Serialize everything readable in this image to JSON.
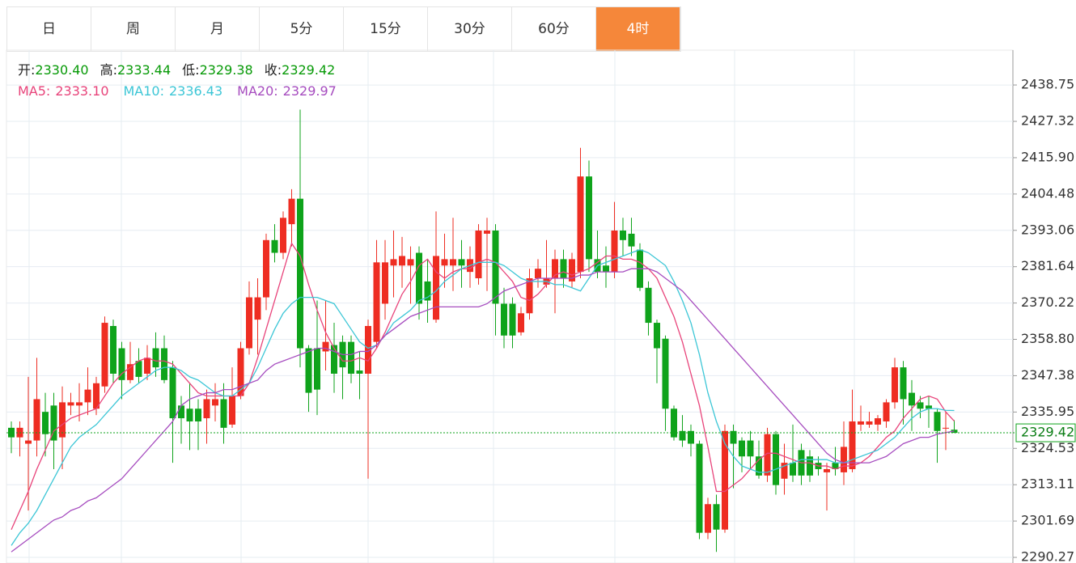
{
  "tabs": {
    "items": [
      "日",
      "周",
      "月",
      "5分",
      "15分",
      "30分",
      "60分",
      "4时"
    ],
    "active": 7
  },
  "info": {
    "items": [
      {
        "label": "开:",
        "value": "2330.40"
      },
      {
        "label": "高:",
        "value": "2333.44"
      },
      {
        "label": "低:",
        "value": "2329.38"
      },
      {
        "label": "收:",
        "value": "2329.42"
      }
    ]
  },
  "chart_data": {
    "type": "candlestick",
    "up_color": "#ee2d22",
    "down_color": "#0fa31b",
    "ylim": [
      2288.5,
      2449.7
    ],
    "yticks": [
      {
        "value": 2438.75,
        "label": "2438.75"
      },
      {
        "value": 2427.32,
        "label": "2427.32"
      },
      {
        "value": 2415.9,
        "label": "2415.90"
      },
      {
        "value": 2404.48,
        "label": "2404.48"
      },
      {
        "value": 2393.06,
        "label": "2393.06"
      },
      {
        "value": 2381.64,
        "label": "2381.64"
      },
      {
        "value": 2370.22,
        "label": "2370.22"
      },
      {
        "value": 2358.8,
        "label": "2358.80"
      },
      {
        "value": 2347.38,
        "label": "2347.38"
      },
      {
        "value": 2335.95,
        "label": "2335.95"
      },
      {
        "value": 2324.53,
        "label": "2324.53"
      },
      {
        "value": 2313.11,
        "label": "2313.11"
      },
      {
        "value": 2301.69,
        "label": "2301.69"
      },
      {
        "value": 2290.27,
        "label": "2290.27"
      }
    ],
    "grid": true,
    "last_price": {
      "value": 2329.42,
      "label": "2329.42"
    },
    "open": [
      2331,
      2328,
      2326,
      2327,
      2336,
      2338,
      2328,
      2338,
      2338,
      2339,
      2337,
      2344,
      2363,
      2356,
      2346,
      2352,
      2348,
      2356,
      2356,
      2350,
      2338,
      2337,
      2337,
      2334,
      2338,
      2340,
      2332,
      2341,
      2356,
      2365,
      2372,
      2390,
      2386,
      2395,
      2403,
      2356,
      2356,
      2355,
      2357,
      2358,
      2358,
      2349,
      2348,
      2358,
      2370,
      2382,
      2382,
      2382,
      2386,
      2377,
      2365,
      2382,
      2382,
      2384,
      2380,
      2378,
      2392,
      2393,
      2370,
      2370,
      2361,
      2367,
      2378,
      2376,
      2378,
      2384,
      2377,
      2380,
      2410,
      2384,
      2382,
      2380,
      2393,
      2392,
      2387,
      2375,
      2364,
      2359,
      2337,
      2330,
      2330,
      2326,
      2298,
      2307,
      2299,
      2330,
      2327,
      2327,
      2322,
      2316,
      2329,
      2315,
      2320,
      2324,
      2322,
      2320,
      2317,
      2320,
      2317,
      2318,
      2332,
      2332,
      2332,
      2333,
      2339,
      2350,
      2342,
      2339,
      2338,
      2336,
      2331,
      2330.4
    ],
    "high": [
      2333,
      2333,
      2347,
      2353,
      2342,
      2342,
      2344,
      2342,
      2345,
      2350,
      2347,
      2366,
      2365,
      2358,
      2358,
      2356,
      2357,
      2361,
      2360,
      2352,
      2341,
      2345,
      2340,
      2343,
      2345,
      2345,
      2350,
      2358,
      2377,
      2378,
      2392,
      2395,
      2399,
      2406,
      2431,
      2357,
      2371,
      2371,
      2364,
      2360,
      2360,
      2355,
      2365,
      2390,
      2390,
      2393,
      2391,
      2388,
      2388,
      2384,
      2399,
      2392,
      2397,
      2390,
      2388,
      2395,
      2397,
      2395,
      2375,
      2372,
      2369,
      2381,
      2384,
      2390,
      2387,
      2387,
      2386,
      2419,
      2415,
      2393,
      2388,
      2402,
      2397,
      2397,
      2389,
      2377,
      2365,
      2360,
      2338,
      2335,
      2332,
      2327,
      2309,
      2310,
      2332,
      2332,
      2328,
      2330,
      2327,
      2331,
      2330,
      2326,
      2332,
      2326,
      2324,
      2322,
      2320,
      2325,
      2333,
      2343,
      2338,
      2336,
      2335,
      2340,
      2353,
      2352,
      2346,
      2341,
      2341,
      2337,
      2336,
      2333.44
    ],
    "low": [
      2323,
      2322,
      2305,
      2322,
      2322,
      2318,
      2318,
      2335,
      2333,
      2335,
      2335,
      2342,
      2345,
      2340,
      2345,
      2345,
      2346,
      2347,
      2345,
      2320,
      2326,
      2324,
      2324,
      2326,
      2333,
      2326,
      2331,
      2340,
      2354,
      2354,
      2368,
      2383,
      2384,
      2388,
      2350,
      2336,
      2335,
      2349,
      2342,
      2340,
      2345,
      2340,
      2315,
      2356,
      2365,
      2372,
      2375,
      2370,
      2365,
      2364,
      2364,
      2375,
      2374,
      2375,
      2375,
      2376,
      2374,
      2360,
      2356,
      2356,
      2360,
      2365,
      2375,
      2375,
      2367,
      2375,
      2375,
      2378,
      2380,
      2378,
      2375,
      2378,
      2385,
      2385,
      2374,
      2360,
      2345,
      2330,
      2327,
      2325,
      2322,
      2296,
      2296,
      2292,
      2298,
      2312,
      2317,
      2318,
      2315,
      2314,
      2310,
      2310,
      2314,
      2313,
      2314,
      2316,
      2305,
      2316,
      2313,
      2317,
      2330,
      2331,
      2330,
      2331,
      2337,
      2332,
      2330,
      2334,
      2331,
      2320,
      2324,
      2329.38
    ],
    "close": [
      2328,
      2331,
      2327,
      2340,
      2329,
      2327,
      2339,
      2339,
      2339,
      2343,
      2345,
      2364,
      2348,
      2346,
      2351,
      2347,
      2353,
      2350,
      2346,
      2334,
      2334,
      2333,
      2333,
      2340,
      2340,
      2331,
      2341,
      2356,
      2372,
      2372,
      2390,
      2386,
      2397,
      2403,
      2356,
      2342,
      2343,
      2358,
      2348,
      2350,
      2348,
      2348,
      2363,
      2383,
      2383,
      2384,
      2385,
      2384,
      2370,
      2371,
      2385,
      2384,
      2384,
      2382,
      2384,
      2393,
      2393,
      2370,
      2360,
      2360,
      2367,
      2378,
      2381,
      2378,
      2384,
      2378,
      2384,
      2410,
      2384,
      2380,
      2380,
      2393,
      2390,
      2388,
      2375,
      2364,
      2356,
      2337,
      2328,
      2327,
      2326,
      2298,
      2307,
      2299,
      2330,
      2326,
      2322,
      2322,
      2316,
      2329,
      2313,
      2320,
      2316,
      2316,
      2316,
      2318,
      2318,
      2318,
      2325,
      2333,
      2333,
      2333,
      2334,
      2339,
      2350,
      2340,
      2338,
      2337,
      2337,
      2330,
      2331,
      2329.42
    ],
    "series": [
      {
        "name": "MA5:",
        "label": "2333.10",
        "color": "#e8437a",
        "values": [
          2299,
          2305,
          2311,
          2318,
          2324,
          2330,
          2332,
          2334,
          2335,
          2336,
          2337,
          2341,
          2345,
          2348,
          2350,
          2352,
          2353,
          2352,
          2352,
          2351,
          2348,
          2345,
          2342,
          2341,
          2341,
          2341,
          2341,
          2341,
          2345,
          2353,
          2362,
          2371,
          2380,
          2389,
          2385,
          2376,
          2368,
          2361,
          2356,
          2352,
          2352,
          2353,
          2352,
          2356,
          2361,
          2367,
          2373,
          2377,
          2382,
          2384,
          2380,
          2378,
          2380,
          2381,
          2381,
          2383,
          2384,
          2383,
          2380,
          2377,
          2372,
          2371,
          2373,
          2376,
          2379,
          2380,
          2379,
          2380,
          2381,
          2383,
          2385,
          2385,
          2384,
          2384,
          2383,
          2381,
          2378,
          2372,
          2366,
          2358,
          2348,
          2338,
          2325,
          2311,
          2311,
          2313,
          2315,
          2318,
          2321,
          2323,
          2323,
          2322,
          2321,
          2320,
          2320,
          2319,
          2319,
          2318,
          2319,
          2319,
          2320,
          2322,
          2325,
          2328,
          2330,
          2334,
          2337,
          2340,
          2341,
          2340,
          2336,
          2333.1
        ]
      },
      {
        "name": "MA10:",
        "label": "2336.43",
        "color": "#3cc6d6",
        "values": [
          2294,
          2298,
          2301,
          2305,
          2310,
          2315,
          2320,
          2325,
          2328,
          2330,
          2332,
          2335,
          2338,
          2341,
          2343,
          2345,
          2347,
          2349,
          2350,
          2350,
          2349,
          2347,
          2346,
          2344,
          2342,
          2341,
          2341,
          2343,
          2345,
          2350,
          2356,
          2362,
          2367,
          2370,
          2372,
          2372,
          2372,
          2371,
          2370,
          2366,
          2362,
          2358,
          2356,
          2357,
          2360,
          2364,
          2366,
          2368,
          2371,
          2372,
          2374,
          2377,
          2379,
          2381,
          2382,
          2383,
          2383,
          2383,
          2382,
          2380,
          2378,
          2377,
          2377,
          2377,
          2376,
          2376,
          2375,
          2374,
          2378,
          2382,
          2383,
          2384,
          2385,
          2386,
          2387,
          2386,
          2384,
          2382,
          2377,
          2371,
          2364,
          2354,
          2342,
          2333,
          2326,
          2322,
          2319,
          2318,
          2317,
          2317,
          2318,
          2319,
          2320,
          2321,
          2321,
          2321,
          2321,
          2320,
          2320,
          2321,
          2322,
          2323,
          2324,
          2326,
          2328,
          2331,
          2334,
          2336,
          2337,
          2337,
          2336.5,
          2336.43
        ]
      },
      {
        "name": "MA20:",
        "label": "2329.97",
        "color": "#a64cbf",
        "values": [
          2292,
          2294,
          2296,
          2298,
          2300,
          2302,
          2303,
          2305,
          2306,
          2308,
          2309,
          2311,
          2313,
          2315,
          2318,
          2321,
          2324,
          2327,
          2330,
          2333,
          2338,
          2340,
          2341,
          2342,
          2342,
          2343,
          2343,
          2344,
          2345,
          2346,
          2349,
          2351,
          2352,
          2353,
          2354,
          2355,
          2356,
          2356,
          2355,
          2354,
          2354,
          2355,
          2355,
          2357,
          2360,
          2362,
          2364,
          2366,
          2367,
          2368,
          2369,
          2369,
          2369,
          2369,
          2369,
          2369,
          2370,
          2372,
          2374,
          2375,
          2376,
          2377,
          2378,
          2378,
          2378,
          2378,
          2378,
          2379,
          2379,
          2380,
          2380,
          2380,
          2380,
          2381,
          2381,
          2381,
          2380,
          2378,
          2376,
          2374,
          2371,
          2368,
          2365,
          2362,
          2359,
          2356,
          2353,
          2350,
          2347,
          2344,
          2341,
          2338,
          2335,
          2332,
          2329,
          2326,
          2323,
          2321,
          2320,
          2320,
          2320,
          2320,
          2321,
          2322,
          2324,
          2326,
          2327,
          2328,
          2328,
          2329,
          2329.5,
          2329.97
        ]
      }
    ]
  }
}
